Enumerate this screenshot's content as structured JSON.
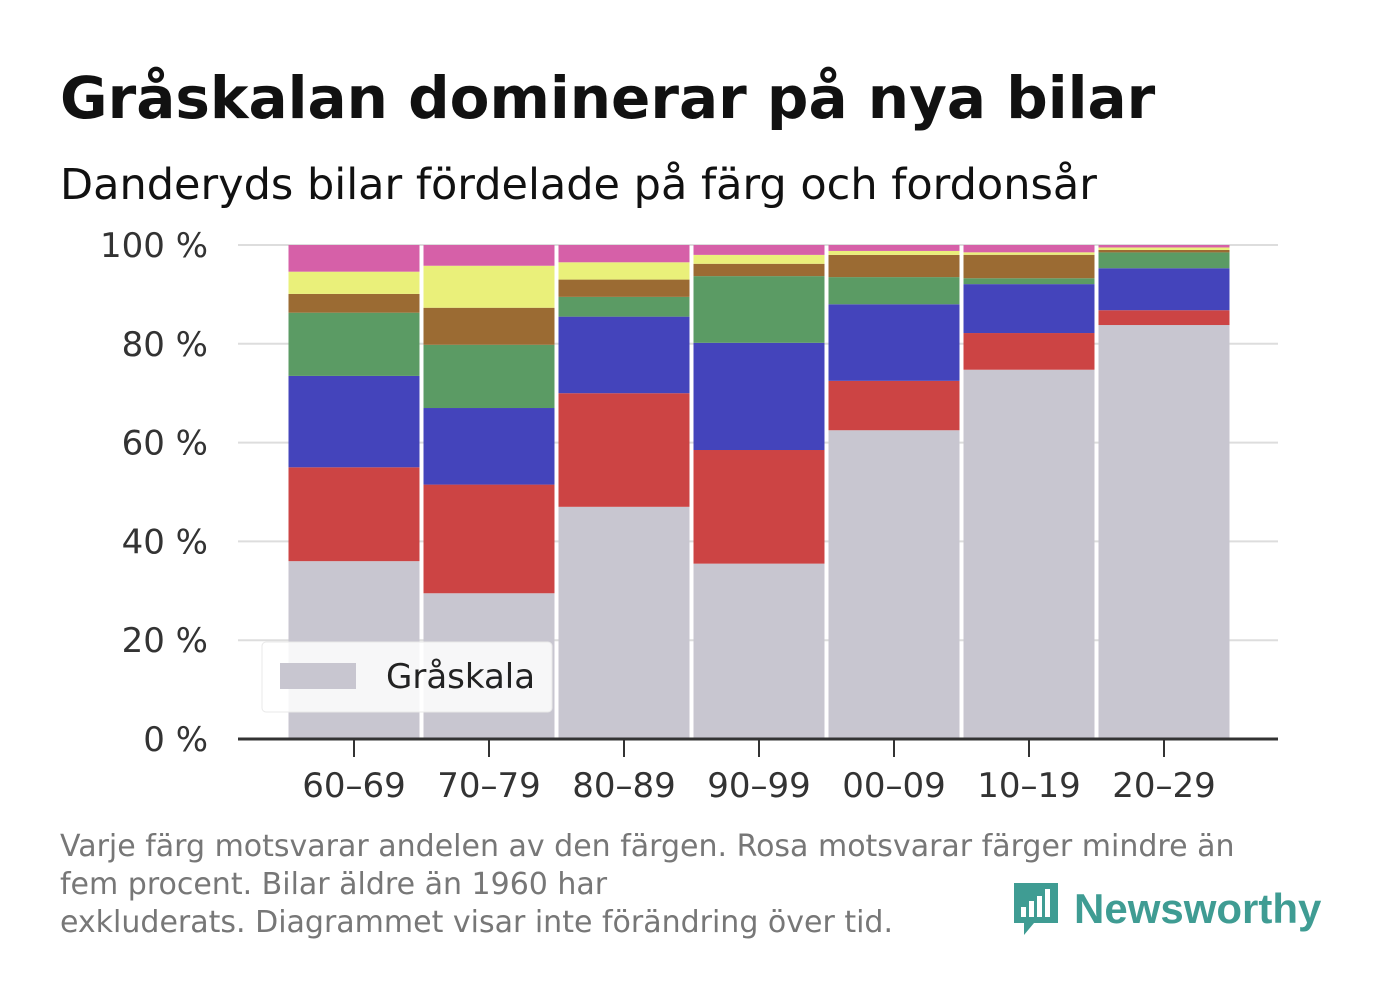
{
  "title": "Gråskalan dominerar på nya bilar",
  "subtitle": "Danderyds bilar fördelade på färg och fordonsår",
  "note_lines": [
    "Varje färg motsvarar andelen av den färgen. Rosa motsvarar färger mindre än",
    "fem procent. Bilar äldre än 1960 har",
    "exkluderats. Diagrammet visar inte förändring över tid."
  ],
  "brand": {
    "name": "Newsworthy",
    "color": "#3f9c93",
    "icon": "newsworthy-logo-icon"
  },
  "chart_data": {
    "type": "bar",
    "stacked": true,
    "categories": [
      "60–69",
      "70–79",
      "80–89",
      "90–99",
      "00–09",
      "10–19",
      "20–29"
    ],
    "yticks": [
      "0 %",
      "20 %",
      "40 %",
      "60 %",
      "80 %",
      "100 %"
    ],
    "ylim": [
      0,
      100
    ],
    "grid": true,
    "legend": {
      "placement": "bottom-left",
      "entries": [
        "Gråskala"
      ]
    },
    "series": [
      {
        "name": "Gråskala",
        "color": "#c8c6d0",
        "values": [
          36,
          29.5,
          47,
          35.5,
          62.5,
          75.5,
          83.8
        ]
      },
      {
        "color": "#cc4444",
        "values": [
          19,
          22,
          23,
          23,
          10,
          7.5,
          3
        ]
      },
      {
        "color": "#4444bb",
        "values": [
          18.5,
          15.5,
          15.5,
          21.7,
          15.5,
          10,
          8.5
        ]
      },
      {
        "color": "#5b9b64",
        "values": [
          12.8,
          12.8,
          4,
          13.5,
          5.5,
          1.2,
          3.2
        ]
      },
      {
        "color": "#9b6b33",
        "values": [
          3.8,
          7.5,
          3.5,
          2.5,
          4.5,
          4.8,
          0.5
        ]
      },
      {
        "color": "#eaf07a",
        "values": [
          4.5,
          8.5,
          3.5,
          1.8,
          0.8,
          0.5,
          0.5
        ]
      },
      {
        "color": "#d660a8",
        "values": [
          5.4,
          4.2,
          3.5,
          2,
          1.2,
          1.5,
          0.5
        ]
      }
    ]
  }
}
